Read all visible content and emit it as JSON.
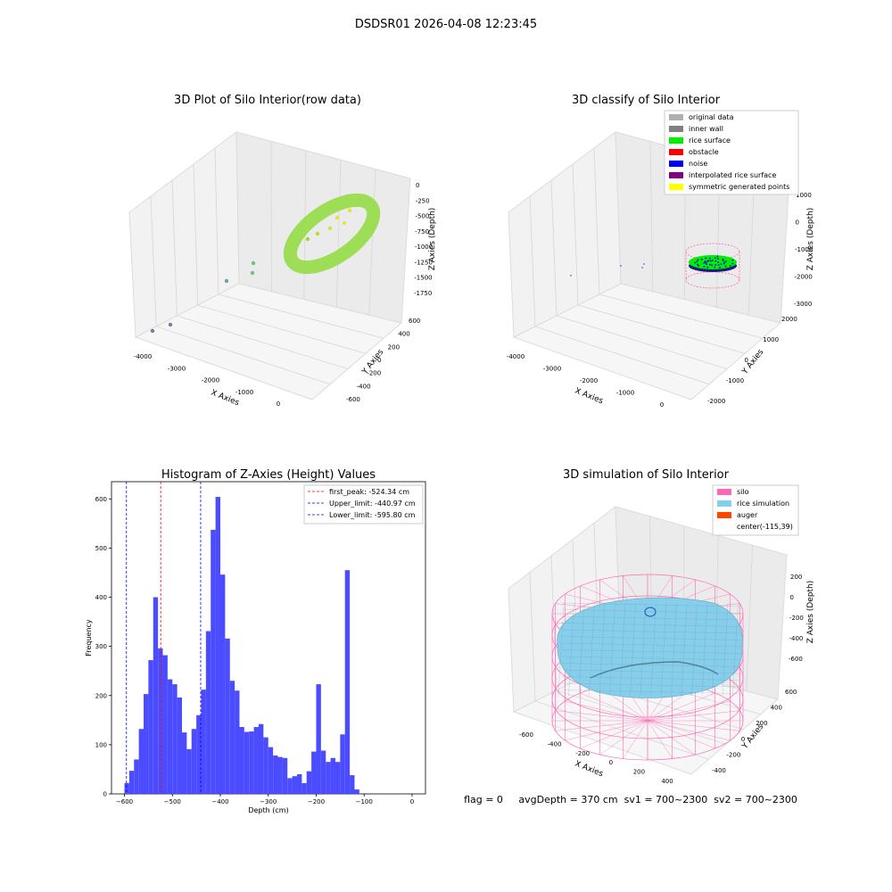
{
  "figure_title": "DSDSR01 2026-04-08 12:23:45",
  "status_line": "flag = 0     avgDepth = 370 cm  sv1 = 700~2300  sv2 = 700~2300",
  "panel1": {
    "title": "3D Plot of Silo Interior(row data)",
    "xlabel": "X Axies",
    "ylabel": "Y Axies",
    "zlabel": "Z Axies (Depth)",
    "xticks": [
      "-4000",
      "-3000",
      "-2000",
      "-1000",
      "0"
    ],
    "yticks": [
      "-600",
      "-400",
      "-200",
      "0",
      "200",
      "400",
      "600"
    ],
    "zticks": [
      "0",
      "-250",
      "-500",
      "-750",
      "-1000",
      "-1250",
      "-1500",
      "-1750"
    ]
  },
  "panel2": {
    "title": "3D classify of Silo Interior",
    "xlabel": "X Axies",
    "ylabel": "Y Axies",
    "zlabel": "Z Axies (Depth)",
    "xticks": [
      "-4000",
      "-3000",
      "-2000",
      "-1000",
      "0"
    ],
    "yticks": [
      "-2000",
      "-1000",
      "0",
      "1000",
      "2000"
    ],
    "zticks": [
      "1000",
      "0",
      "-1000",
      "-2000",
      "-3000"
    ],
    "legend": [
      {
        "label": "original data",
        "color": "#b0b0b0"
      },
      {
        "label": "inner wall",
        "color": "#808080"
      },
      {
        "label": "rice surface",
        "color": "#00ee00"
      },
      {
        "label": "obstacle",
        "color": "#ff0000"
      },
      {
        "label": "noise",
        "color": "#0000ee"
      },
      {
        "label": "interpolated rice surface",
        "color": "#800080"
      },
      {
        "label": "symmetric generated points",
        "color": "#ffff00"
      }
    ]
  },
  "panel4": {
    "title": "3D simulation of Silo Interior",
    "xlabel": "X Axies",
    "ylabel": "Y Axies",
    "zlabel": "Z Axies (Depth)",
    "xticks": [
      "-600",
      "-400",
      "-200",
      "0",
      "200",
      "400"
    ],
    "yticks": [
      "-400",
      "-200",
      "0",
      "200",
      "400",
      "600"
    ],
    "zticks": [
      "200",
      "0",
      "-200",
      "-400",
      "-600"
    ],
    "legend": [
      {
        "label": "silo",
        "color": "#ff69b4"
      },
      {
        "label": "rice simulation",
        "color": "#87ceeb"
      },
      {
        "label": "auger",
        "color": "#ff4500"
      },
      {
        "label": "center(-115,39)",
        "color": ""
      }
    ]
  },
  "colors": {
    "hist_bar": "#4b4bff",
    "first_peak": "#ff0000",
    "limits": "#0000ff",
    "silo": "#ff69b4",
    "rice": "#87ceeb"
  },
  "chart_data": [
    {
      "type": "scatter",
      "title": "3D Plot of Silo Interior(row data)",
      "xlabel": "X Axies",
      "ylabel": "Y Axies",
      "zlabel": "Z Axies (Depth)",
      "xlim": [
        -4200,
        200
      ],
      "ylim": [
        -650,
        650
      ],
      "zlim": [
        -1900,
        100
      ]
    },
    {
      "type": "scatter",
      "title": "3D classify of Silo Interior",
      "xlabel": "X Axies",
      "ylabel": "Y Axies",
      "zlabel": "Z Axies (Depth)",
      "xlim": [
        -4200,
        200
      ],
      "ylim": [
        -2200,
        2200
      ],
      "zlim": [
        -3000,
        1000
      ],
      "legend_position": "top-right"
    },
    {
      "type": "bar",
      "title": "Histogram of Z-Axies (Height) Values",
      "xlabel": "Depth (cm)",
      "ylabel": "Frequency",
      "xlim": [
        -627,
        28
      ],
      "ylim": [
        0,
        635
      ],
      "xticks": [
        -600,
        -500,
        -400,
        -300,
        -200,
        -100,
        0
      ],
      "yticks": [
        0,
        100,
        200,
        300,
        400,
        500,
        600
      ],
      "bin_start": -600,
      "bin_width": 10,
      "values": [
        22,
        47,
        70,
        132,
        203,
        272,
        400,
        296,
        282,
        233,
        223,
        196,
        125,
        91,
        132,
        160,
        212,
        331,
        537,
        604,
        446,
        316,
        230,
        210,
        136,
        126,
        127,
        136,
        142,
        115,
        95,
        78,
        75,
        73,
        32,
        36,
        40,
        22,
        46,
        86,
        223,
        88,
        65,
        73,
        65,
        121,
        455,
        38,
        9
      ],
      "lines": [
        {
          "label": "first_peak: -524.34 cm",
          "value": -524.34,
          "color": "#ff0000"
        },
        {
          "label": "Upper_limit: -440.97 cm",
          "value": -440.97,
          "color": "#0000ff"
        },
        {
          "label": "Lower_limit: -595.80 cm",
          "value": -595.8,
          "color": "#0000ff"
        }
      ],
      "legend_position": "top-right"
    },
    {
      "type": "scatter",
      "title": "3D simulation of Silo Interior",
      "xlabel": "X Axies",
      "ylabel": "Y Axies",
      "zlabel": "Z Axies (Depth)",
      "xlim": [
        -700,
        450
      ],
      "ylim": [
        -450,
        650
      ],
      "zlim": [
        -750,
        350
      ],
      "legend_position": "top-right"
    }
  ]
}
